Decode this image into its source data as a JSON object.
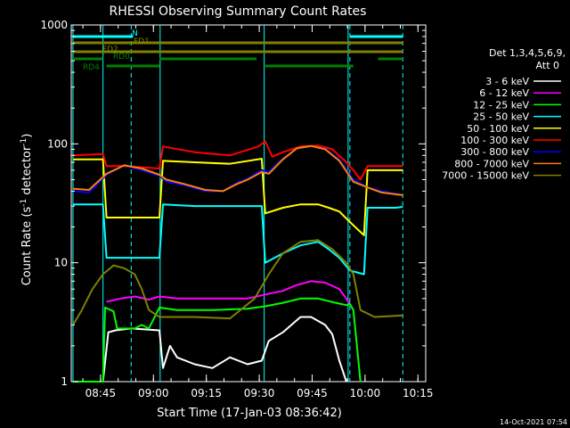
{
  "chart_data": {
    "type": "line",
    "title": "RHESSI Observing Summary Count Rates",
    "xlabel": "Start Time (17-Jan-03 08:36:42)",
    "ylabel": "Count Rate (s",
    "ylabel_sup": "-1",
    "ylabel_mid": " detector",
    "ylabel_end": ")",
    "yscale": "log",
    "ylim": [
      1,
      1000
    ],
    "xlim_min": [
      0,
      100.5
    ],
    "y_ticks": [
      "1",
      "10",
      "100",
      "1000"
    ],
    "x_ticks": [
      {
        "label": "08:45",
        "t": 8.3
      },
      {
        "label": "09:00",
        "t": 23.3
      },
      {
        "label": "09:15",
        "t": 38.3
      },
      {
        "label": "09:30",
        "t": 53.3
      },
      {
        "label": "09:45",
        "t": 68.3
      },
      {
        "label": "10:00",
        "t": 83.3
      },
      {
        "label": "10:15",
        "t": 98.3
      }
    ],
    "legend_header": [
      "Det 1,3,4,5,6,9,",
      "Att 0"
    ],
    "series": [
      {
        "name": "3 - 6 keV",
        "color": "#ffffff",
        "points": [
          [
            0.5,
            1
          ],
          [
            9,
            1
          ],
          [
            10.5,
            2.6
          ],
          [
            12.5,
            2.7
          ],
          [
            17,
            2.8
          ],
          [
            25,
            2.7
          ],
          [
            26,
            1.3
          ],
          [
            28,
            2
          ],
          [
            30,
            1.6
          ],
          [
            35,
            1.4
          ],
          [
            40,
            1.3
          ],
          [
            45,
            1.6
          ],
          [
            50,
            1.4
          ],
          [
            54,
            1.5
          ],
          [
            56,
            2.2
          ],
          [
            60,
            2.6
          ],
          [
            65,
            3.5
          ],
          [
            68,
            3.5
          ],
          [
            72,
            3
          ],
          [
            74,
            2.5
          ],
          [
            76,
            1.5
          ],
          [
            78,
            1
          ]
        ]
      },
      {
        "name": "6 - 12 keV",
        "color": "#ff00ff",
        "points": [
          [
            10,
            4.7
          ],
          [
            14,
            5
          ],
          [
            18,
            5.2
          ],
          [
            22,
            4.9
          ],
          [
            25,
            5.2
          ],
          [
            30,
            5
          ],
          [
            40,
            5
          ],
          [
            50,
            5
          ],
          [
            55,
            5.4
          ],
          [
            60,
            5.8
          ],
          [
            64,
            6.5
          ],
          [
            68,
            7
          ],
          [
            72,
            6.8
          ],
          [
            76,
            6
          ],
          [
            78,
            5
          ],
          [
            79,
            4.5
          ]
        ]
      },
      {
        "name": "12 - 25 keV",
        "color": "#00ff00",
        "points": [
          [
            0.5,
            1
          ],
          [
            9,
            1
          ],
          [
            9.6,
            4.2
          ],
          [
            12,
            3.9
          ],
          [
            13,
            2.8
          ],
          [
            18,
            2.8
          ],
          [
            20,
            3
          ],
          [
            22,
            2.8
          ],
          [
            25,
            4.2
          ],
          [
            30,
            4
          ],
          [
            40,
            4
          ],
          [
            50,
            4.1
          ],
          [
            55,
            4.3
          ],
          [
            60,
            4.6
          ],
          [
            65,
            5
          ],
          [
            70,
            5
          ],
          [
            75,
            4.6
          ],
          [
            78,
            4.4
          ],
          [
            79,
            4.5
          ],
          [
            80,
            4
          ],
          [
            82,
            1
          ]
        ]
      },
      {
        "name": "25 - 50 keV",
        "color": "#00ffff",
        "points": [
          [
            0.5,
            31
          ],
          [
            9,
            31
          ],
          [
            10,
            11
          ],
          [
            25,
            11
          ],
          [
            26,
            31
          ],
          [
            35,
            30
          ],
          [
            45,
            30
          ],
          [
            54,
            30
          ],
          [
            55,
            10
          ],
          [
            60,
            12
          ],
          [
            65,
            14
          ],
          [
            70,
            15
          ],
          [
            73,
            13
          ],
          [
            76,
            11
          ],
          [
            79,
            8.6
          ],
          [
            83,
            8
          ],
          [
            84,
            29
          ],
          [
            92,
            29
          ],
          [
            94,
            29.5
          ]
        ]
      },
      {
        "name": "50 - 100 keV",
        "color": "#ffff00",
        "points": [
          [
            0.5,
            74
          ],
          [
            9,
            74
          ],
          [
            10,
            24
          ],
          [
            25,
            24
          ],
          [
            26,
            72
          ],
          [
            35,
            70
          ],
          [
            45,
            68
          ],
          [
            54,
            75
          ],
          [
            55,
            26
          ],
          [
            60,
            29
          ],
          [
            65,
            31
          ],
          [
            70,
            31
          ],
          [
            73,
            29
          ],
          [
            76,
            27
          ],
          [
            79,
            22
          ],
          [
            83,
            17
          ],
          [
            84,
            60
          ],
          [
            94,
            60
          ]
        ]
      },
      {
        "name": "100 - 300 keV",
        "color": "#ff0000",
        "points": [
          [
            0.5,
            80
          ],
          [
            9,
            82
          ],
          [
            10,
            65
          ],
          [
            15,
            65
          ],
          [
            25,
            62
          ],
          [
            26,
            95
          ],
          [
            35,
            85
          ],
          [
            45,
            80
          ],
          [
            53,
            95
          ],
          [
            55,
            105
          ],
          [
            57,
            78
          ],
          [
            60,
            85
          ],
          [
            65,
            95
          ],
          [
            70,
            97
          ],
          [
            74,
            90
          ],
          [
            78,
            70
          ],
          [
            80,
            60
          ],
          [
            82,
            50
          ],
          [
            84,
            65
          ],
          [
            94,
            65
          ]
        ]
      },
      {
        "name": "300 - 800 keV",
        "color": "#0000ff",
        "points": [
          [
            0.5,
            40
          ],
          [
            5,
            39
          ],
          [
            10,
            55
          ],
          [
            15,
            66
          ],
          [
            20,
            60
          ],
          [
            25,
            54
          ],
          [
            27,
            48
          ],
          [
            32,
            45
          ],
          [
            38,
            40
          ],
          [
            43,
            40
          ],
          [
            47,
            47
          ],
          [
            50,
            51
          ],
          [
            54,
            60
          ],
          [
            56,
            58
          ],
          [
            60,
            75
          ],
          [
            64,
            92
          ],
          [
            68,
            96
          ],
          [
            72,
            91
          ],
          [
            76,
            74
          ],
          [
            80,
            50
          ],
          [
            84,
            43
          ],
          [
            88,
            40
          ],
          [
            94,
            37
          ]
        ]
      },
      {
        "name": "800 - 7000 keV",
        "color": "#ff8000",
        "points": [
          [
            0.5,
            42
          ],
          [
            5,
            41
          ],
          [
            10,
            56
          ],
          [
            15,
            66
          ],
          [
            20,
            62
          ],
          [
            25,
            55
          ],
          [
            27,
            50
          ],
          [
            32,
            46
          ],
          [
            38,
            41
          ],
          [
            43,
            40
          ],
          [
            47,
            46
          ],
          [
            50,
            50
          ],
          [
            54,
            58
          ],
          [
            56,
            56
          ],
          [
            60,
            74
          ],
          [
            64,
            92
          ],
          [
            68,
            96
          ],
          [
            72,
            90
          ],
          [
            76,
            72
          ],
          [
            80,
            48
          ],
          [
            84,
            43
          ],
          [
            88,
            39
          ],
          [
            94,
            37
          ]
        ]
      },
      {
        "name": "7000 - 15000 keV",
        "color": "#808000",
        "points": [
          [
            0.5,
            3
          ],
          [
            3,
            4
          ],
          [
            6,
            6
          ],
          [
            9,
            8
          ],
          [
            12,
            9.5
          ],
          [
            15,
            9
          ],
          [
            18,
            8
          ],
          [
            20,
            6
          ],
          [
            22,
            4
          ],
          [
            25,
            3.5
          ],
          [
            35,
            3.5
          ],
          [
            45,
            3.4
          ],
          [
            52,
            5
          ],
          [
            56,
            8
          ],
          [
            60,
            12
          ],
          [
            65,
            15
          ],
          [
            70,
            15.5
          ],
          [
            74,
            13
          ],
          [
            78,
            10
          ],
          [
            80,
            8
          ],
          [
            82,
            4
          ],
          [
            86,
            3.5
          ],
          [
            94,
            3.6
          ]
        ]
      }
    ],
    "state_bars": [
      {
        "label": "N",
        "color": "#00ffff",
        "segments": [
          [
            0.5,
            17.5
          ],
          [
            79,
            94
          ]
        ]
      },
      {
        "label": "FD1",
        "color": "#808000",
        "segments": [
          [
            0.5,
            94
          ]
        ]
      },
      {
        "label": "FD2",
        "color": "#808000",
        "segments": [
          [
            0.5,
            94
          ]
        ]
      },
      {
        "label": "RD0",
        "color": "#008000",
        "segments": [
          [
            0.5,
            9
          ],
          [
            25,
            52.5
          ],
          [
            87,
            94
          ]
        ]
      },
      {
        "label": "RD4",
        "color": "#008000",
        "segments": [
          [
            10,
            25
          ],
          [
            55,
            80
          ]
        ]
      }
    ],
    "dashed_markers": [
      17,
      79,
      94
    ],
    "solid_markers": [
      0.5,
      9,
      25.2,
      54.7,
      78.5
    ],
    "timestamp": "14-Oct-2021 07:54"
  }
}
